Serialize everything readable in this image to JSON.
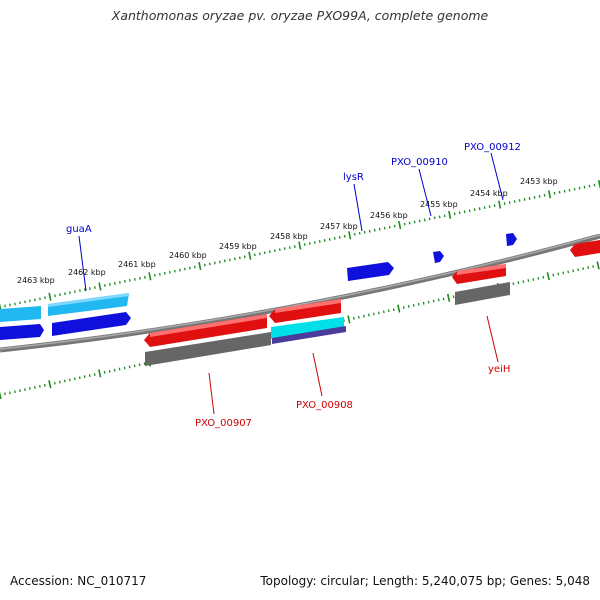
{
  "title": "Xanthomonas oryzae pv. oryzae PXO99A, complete genome",
  "footer": {
    "accession": "Accession: NC_010717",
    "info": "Topology: circular; Length: 5,240,075 bp; Genes: 5,048"
  },
  "colors": {
    "ticks": "#1f8a1f",
    "backbone": "#8a8a8a",
    "gene_label_top": "#0000cc",
    "gene_label_bottom": "#cc0000"
  },
  "scale_labels": [
    {
      "text": "2463 kbp"
    },
    {
      "text": "2462 kbp"
    },
    {
      "text": "2461 kbp"
    },
    {
      "text": "2460 kbp"
    },
    {
      "text": "2459 kbp"
    },
    {
      "text": "2458 kbp"
    },
    {
      "text": "2457 kbp"
    },
    {
      "text": "2456 kbp"
    },
    {
      "text": "2455 kbp"
    },
    {
      "text": "2454 kbp"
    },
    {
      "text": "2453 kbp"
    }
  ],
  "gene_labels": [
    {
      "text": "guaA"
    },
    {
      "text": "lysR"
    },
    {
      "text": "PXO_00910"
    },
    {
      "text": "PXO_00912"
    },
    {
      "text": "PXO_00907"
    },
    {
      "text": "PXO_00908"
    },
    {
      "text": "yeiH"
    }
  ]
}
